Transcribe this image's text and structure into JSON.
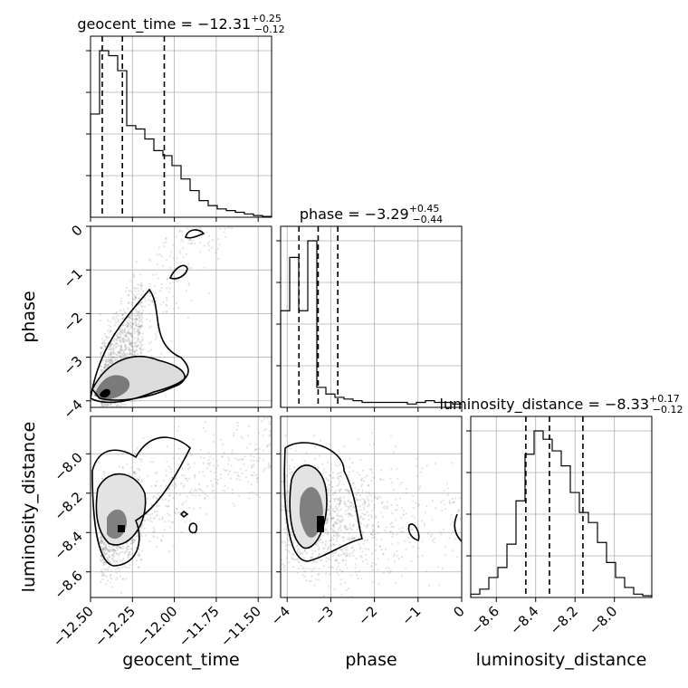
{
  "chart_data": {
    "type": "corner",
    "parameters": [
      "geocent_time",
      "phase",
      "luminosity_distance"
    ],
    "ranges": {
      "geocent_time": [
        -12.5,
        -11.42
      ],
      "phase": [
        -4.15,
        0.0
      ],
      "luminosity_distance": [
        -8.73,
        -7.81
      ]
    },
    "ticks": {
      "geocent_time": [
        -12.5,
        -12.25,
        -12.0,
        -11.75,
        -11.5
      ],
      "phase": [
        -4,
        -3,
        -2,
        -1,
        0
      ],
      "luminosity_distance": [
        -8.6,
        -8.4,
        -8.2,
        -8.0
      ]
    },
    "tick_labels": {
      "geocent_time": [
        "−12.50",
        "−12.25",
        "−12.00",
        "−11.75",
        "−11.50"
      ],
      "phase": [
        "−4",
        "−3",
        "−2",
        "−1",
        "0"
      ],
      "luminosity_distance": [
        "−8.6",
        "−8.4",
        "−8.2",
        "−8.0"
      ]
    },
    "axis_labels": {
      "geocent_time": "geocent_time",
      "phase": "phase",
      "luminosity_distance": "luminosity_distance"
    },
    "titles": {
      "geocent_time": {
        "main": "geocent_time = −12.31",
        "plus": "+0.25",
        "minus": "−0.12"
      },
      "phase": {
        "main": "phase = −3.29",
        "plus": "+0.45",
        "minus": "−0.44"
      },
      "luminosity_distance": {
        "main": "luminosity_distance = −8.33",
        "plus": "+0.17",
        "minus": "−0.12"
      }
    },
    "quantiles": {
      "geocent_time": [
        -12.43,
        -12.31,
        -12.06
      ],
      "phase": [
        -3.73,
        -3.29,
        -2.84
      ],
      "luminosity_distance": [
        -8.45,
        -8.33,
        -8.16
      ]
    },
    "histograms": {
      "geocent_time": [
        0.62,
        1.0,
        0.97,
        0.88,
        0.55,
        0.53,
        0.47,
        0.4,
        0.37,
        0.31,
        0.23,
        0.16,
        0.1,
        0.07,
        0.05,
        0.04,
        0.03,
        0.02,
        0.01,
        0.005
      ],
      "phase": [
        0.58,
        0.9,
        0.58,
        1.0,
        0.12,
        0.08,
        0.06,
        0.05,
        0.04,
        0.03,
        0.03,
        0.03,
        0.03,
        0.03,
        0.02,
        0.03,
        0.04,
        0.03,
        0.03,
        0.02
      ],
      "luminosity_distance": [
        0.02,
        0.05,
        0.12,
        0.18,
        0.32,
        0.58,
        0.86,
        1.0,
        0.95,
        0.88,
        0.79,
        0.63,
        0.51,
        0.45,
        0.33,
        0.21,
        0.12,
        0.06,
        0.02,
        0.01
      ]
    },
    "levels": [
      0.39,
      0.86
    ],
    "grid": true,
    "sample_color": "#7f7f7f",
    "contour_color": "#000000"
  }
}
